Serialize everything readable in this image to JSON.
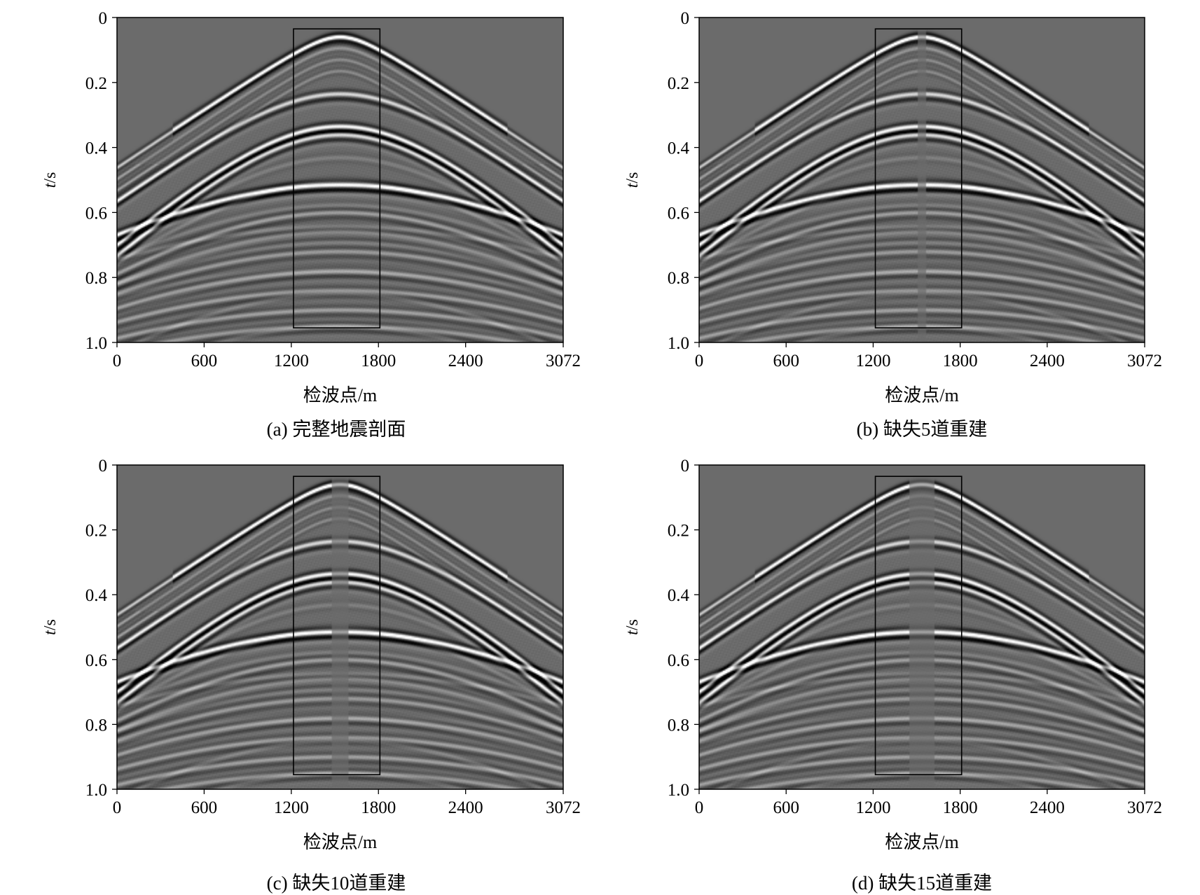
{
  "chart_data": [
    {
      "type": "heatmap",
      "panel": "a",
      "caption": "(a) 完整地震剖面",
      "xlabel": "检波点/m",
      "ylabel_italic": "t",
      "ylabel_unit": "/s",
      "x_ticks": [
        "0",
        "600",
        "1200",
        "1800",
        "2400",
        "3072"
      ],
      "x_tick_values": [
        0,
        600,
        1200,
        1800,
        2400,
        3072
      ],
      "y_ticks": [
        "0",
        "0.2",
        "0.4",
        "0.6",
        "0.8",
        "1.0"
      ],
      "y_tick_values": [
        0,
        0.2,
        0.4,
        0.6,
        0.8,
        1.0
      ],
      "xlim": [
        0,
        3072
      ],
      "ylim": [
        0,
        1.0
      ],
      "y_inverted": true,
      "colormap": "gray",
      "missing_traces": 0,
      "events": [
        {
          "t0": 0.06,
          "v": 3400,
          "amp": 0.8
        },
        {
          "t0": 0.235,
          "v": 3000,
          "amp": 0.9
        },
        {
          "t0": 0.335,
          "v": 2500,
          "amp": 1.2
        },
        {
          "t0": 0.36,
          "v": 2400,
          "amp": 0.9
        },
        {
          "t0": 0.515,
          "v": 3600,
          "amp": 1.3
        },
        {
          "t0": 0.6,
          "v": 3000,
          "amp": 0.45
        },
        {
          "t0": 0.66,
          "v": 3200,
          "amp": 0.4
        },
        {
          "t0": 0.72,
          "v": 3400,
          "amp": 0.4
        },
        {
          "t0": 0.78,
          "v": 3500,
          "amp": 0.5
        },
        {
          "t0": 0.84,
          "v": 3700,
          "amp": 0.45
        },
        {
          "t0": 0.9,
          "v": 3800,
          "amp": 0.45
        },
        {
          "t0": 0.95,
          "v": 3900,
          "amp": 0.4
        }
      ],
      "direct_wave": {
        "x_apex": 1536,
        "t0": 0.06,
        "v": 3350
      },
      "highlight_box": {
        "x": [
          1215,
          1810
        ],
        "t": [
          0.035,
          0.955
        ]
      }
    },
    {
      "type": "heatmap",
      "panel": "b",
      "caption": "(b) 缺失5道重建",
      "xlabel": "检波点/m",
      "ylabel_italic": "t",
      "ylabel_unit": "/s",
      "x_ticks": [
        "0",
        "600",
        "1200",
        "1800",
        "2400",
        "3072"
      ],
      "x_tick_values": [
        0,
        600,
        1200,
        1800,
        2400,
        3072
      ],
      "y_ticks": [
        "0",
        "0.2",
        "0.4",
        "0.6",
        "0.8",
        "1.0"
      ],
      "y_tick_values": [
        0,
        0.2,
        0.4,
        0.6,
        0.8,
        1.0
      ],
      "xlim": [
        0,
        3072
      ],
      "ylim": [
        0,
        1.0
      ],
      "y_inverted": true,
      "colormap": "gray",
      "missing_traces": 5,
      "highlight_box": {
        "x": [
          1215,
          1810
        ],
        "t": [
          0.035,
          0.955
        ]
      }
    },
    {
      "type": "heatmap",
      "panel": "c",
      "caption": "(c) 缺失10道重建",
      "xlabel": "检波点/m",
      "ylabel_italic": "t",
      "ylabel_unit": "/s",
      "x_ticks": [
        "0",
        "600",
        "1200",
        "1800",
        "2400",
        "3072"
      ],
      "x_tick_values": [
        0,
        600,
        1200,
        1800,
        2400,
        3072
      ],
      "y_ticks": [
        "0",
        "0.2",
        "0.4",
        "0.6",
        "0.8",
        "1.0"
      ],
      "y_tick_values": [
        0,
        0.2,
        0.4,
        0.6,
        0.8,
        1.0
      ],
      "xlim": [
        0,
        3072
      ],
      "ylim": [
        0,
        1.0
      ],
      "y_inverted": true,
      "colormap": "gray",
      "missing_traces": 10,
      "highlight_box": {
        "x": [
          1215,
          1810
        ],
        "t": [
          0.035,
          0.955
        ]
      }
    },
    {
      "type": "heatmap",
      "panel": "d",
      "caption": "(d) 缺失15道重建",
      "xlabel": "检波点/m",
      "ylabel_italic": "t",
      "ylabel_unit": "/s",
      "x_ticks": [
        "0",
        "600",
        "1200",
        "1800",
        "2400",
        "3072"
      ],
      "x_tick_values": [
        0,
        600,
        1200,
        1800,
        2400,
        3072
      ],
      "y_ticks": [
        "0",
        "0.2",
        "0.4",
        "0.6",
        "0.8",
        "1.0"
      ],
      "y_tick_values": [
        0,
        0.2,
        0.4,
        0.6,
        0.8,
        1.0
      ],
      "xlim": [
        0,
        3072
      ],
      "ylim": [
        0,
        1.0
      ],
      "y_inverted": true,
      "colormap": "gray",
      "missing_traces": 15,
      "highlight_box": {
        "x": [
          1215,
          1810
        ],
        "t": [
          0.035,
          0.955
        ]
      }
    }
  ],
  "colors": {
    "background_gray": "#6b6b6b",
    "frame": "#000000",
    "box": "#000000"
  }
}
